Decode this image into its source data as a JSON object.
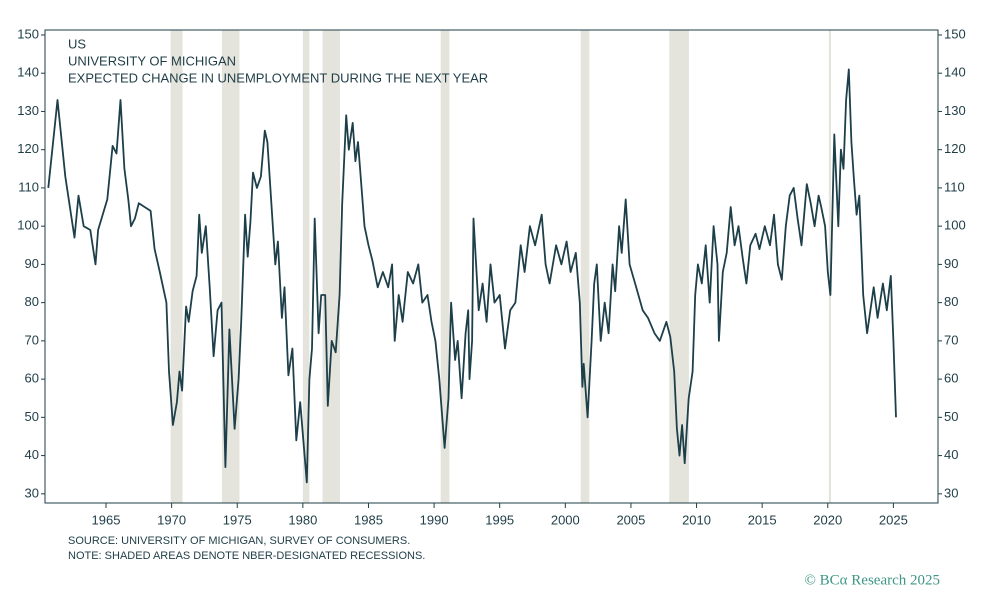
{
  "chart_data": {
    "type": "line",
    "title_lines": [
      "US",
      "UNIVERSITY OF MICHIGAN",
      "EXPECTED CHANGE IN UNEMPLOYMENT DURING THE NEXT YEAR"
    ],
    "notes": [
      "SOURCE: UNIVERSITY OF MICHIGAN, SURVEY OF CONSUMERS.",
      "NOTE: SHADED AREAS DENOTE NBER-DESIGNATED RECESSIONS."
    ],
    "credit": "© BCα Research 2025",
    "color": "#1d3f4a",
    "recession_color": "#e4e4dd",
    "recessions": [
      [
        1969.92,
        1970.83
      ],
      [
        1973.83,
        1975.17
      ],
      [
        1980.0,
        1980.5
      ],
      [
        1981.5,
        1982.83
      ],
      [
        1990.5,
        1991.17
      ],
      [
        2001.17,
        2001.83
      ],
      [
        2007.92,
        2009.42
      ],
      [
        2020.08,
        2020.25
      ]
    ],
    "xlim": [
      1960.35,
      2028.4
    ],
    "ylim": [
      27.6,
      151.3
    ],
    "xticks": [
      1965,
      1970,
      1975,
      1980,
      1985,
      1990,
      1995,
      2000,
      2005,
      2010,
      2015,
      2020,
      2025
    ],
    "yticks": [
      30,
      40,
      50,
      60,
      70,
      80,
      90,
      100,
      110,
      120,
      130,
      140,
      150
    ],
    "x": [
      1960.6,
      1961.3,
      1961.9,
      1962.6,
      1962.9,
      1963.3,
      1963.8,
      1964.2,
      1964.4,
      1965.1,
      1965.5,
      1965.8,
      1966.1,
      1966.4,
      1966.7,
      1966.9,
      1967.2,
      1967.5,
      1968.4,
      1968.7,
      1969.1,
      1969.6,
      1969.8,
      1970.1,
      1970.4,
      1970.6,
      1970.8,
      1971.1,
      1971.3,
      1971.6,
      1971.9,
      1972.1,
      1972.3,
      1972.6,
      1972.9,
      1973.2,
      1973.5,
      1973.8,
      1974.1,
      1974.4,
      1974.6,
      1974.8,
      1975.1,
      1975.3,
      1975.6,
      1975.8,
      1976.0,
      1976.2,
      1976.5,
      1976.8,
      1977.1,
      1977.3,
      1977.9,
      1978.1,
      1978.4,
      1978.6,
      1978.9,
      1979.2,
      1979.5,
      1979.8,
      1980.3,
      1980.5,
      1980.7,
      1980.9,
      1981.2,
      1981.4,
      1981.7,
      1981.9,
      1982.2,
      1982.5,
      1982.8,
      1983.0,
      1983.3,
      1983.5,
      1983.8,
      1984.0,
      1984.2,
      1984.7,
      1985.0,
      1985.3,
      1985.7,
      1986.1,
      1986.5,
      1986.8,
      1987.0,
      1987.3,
      1987.6,
      1988.0,
      1988.4,
      1988.8,
      1989.1,
      1989.5,
      1989.8,
      1990.1,
      1990.4,
      1990.8,
      1991.1,
      1991.3,
      1991.6,
      1991.8,
      1992.1,
      1992.4,
      1992.6,
      1992.7,
      1992.9,
      1993.0,
      1993.4,
      1993.7,
      1994.0,
      1994.3,
      1994.6,
      1995.0,
      1995.4,
      1995.8,
      1996.2,
      1996.6,
      1996.9,
      1997.3,
      1997.7,
      1998.2,
      1998.5,
      1998.8,
      1999.3,
      1999.7,
      2000.1,
      2000.4,
      2000.8,
      2001.1,
      2001.3,
      2001.4,
      2001.7,
      2002.0,
      2002.2,
      2002.4,
      2002.7,
      2003.0,
      2003.3,
      2003.6,
      2003.8,
      2004.1,
      2004.3,
      2004.6,
      2004.9,
      2005.4,
      2005.9,
      2006.3,
      2006.8,
      2007.2,
      2007.7,
      2008.0,
      2008.3,
      2008.5,
      2008.7,
      2008.9,
      2009.1,
      2009.4,
      2009.7,
      2009.9,
      2010.1,
      2010.4,
      2010.7,
      2011.0,
      2011.3,
      2011.6,
      2011.7,
      2012.0,
      2012.3,
      2012.6,
      2012.9,
      2013.2,
      2013.5,
      2013.8,
      2014.1,
      2014.5,
      2014.8,
      2015.2,
      2015.6,
      2015.9,
      2016.2,
      2016.5,
      2016.8,
      2017.1,
      2017.4,
      2017.7,
      2018.0,
      2018.4,
      2018.7,
      2019.0,
      2019.3,
      2019.5,
      2019.8,
      2020.0,
      2020.2,
      2020.5,
      2020.8,
      2021.0,
      2021.2,
      2021.4,
      2021.6,
      2021.8,
      2022.0,
      2022.2,
      2022.4,
      2022.7,
      2023.0,
      2023.5,
      2023.8,
      2024.2,
      2024.5,
      2024.8,
      2025.0,
      2025.2
    ],
    "values": [
      110,
      133,
      113,
      97,
      108,
      100,
      99,
      90,
      99,
      107,
      121,
      119,
      133,
      115,
      107,
      100,
      102,
      106,
      104,
      94,
      88,
      80,
      62,
      48,
      54,
      62,
      57,
      79,
      75,
      83,
      87,
      103,
      93,
      100,
      84,
      66,
      78,
      80,
      37,
      73,
      60,
      47,
      60,
      75,
      103,
      92,
      101,
      114,
      110,
      113,
      125,
      122,
      90,
      96,
      76,
      84,
      61,
      68,
      44,
      54,
      33,
      60,
      68,
      102,
      72,
      82,
      82,
      53,
      70,
      67,
      82,
      106,
      129,
      120,
      127,
      117,
      122,
      100,
      95,
      91,
      84,
      88,
      84,
      90,
      70,
      82,
      75,
      88,
      85,
      90,
      80,
      82,
      75,
      70,
      60,
      42,
      55,
      80,
      65,
      70,
      55,
      72,
      78,
      60,
      70,
      102,
      78,
      85,
      75,
      90,
      80,
      82,
      68,
      78,
      80,
      95,
      88,
      100,
      95,
      103,
      90,
      85,
      95,
      90,
      96,
      88,
      93,
      80,
      58,
      64,
      50,
      70,
      85,
      90,
      70,
      80,
      72,
      90,
      83,
      100,
      93,
      107,
      90,
      84,
      78,
      76,
      72,
      70,
      75,
      71,
      62,
      47,
      40,
      48,
      38,
      55,
      62,
      82,
      90,
      85,
      95,
      80,
      100,
      90,
      70,
      88,
      93,
      105,
      95,
      100,
      92,
      85,
      95,
      98,
      94,
      100,
      95,
      103,
      90,
      86,
      100,
      108,
      110,
      102,
      95,
      111,
      106,
      100,
      108,
      105,
      100,
      88,
      82,
      124,
      100,
      120,
      115,
      133,
      141,
      122,
      112,
      103,
      108,
      82,
      72,
      84,
      76,
      85,
      78,
      87,
      70,
      50
    ]
  }
}
